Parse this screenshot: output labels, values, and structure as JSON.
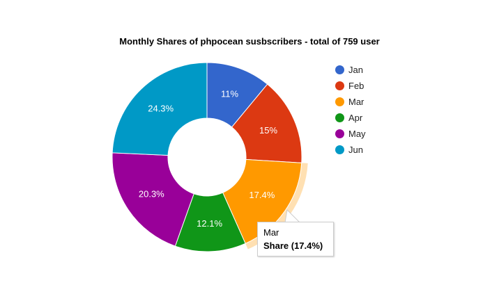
{
  "chart_data": {
    "type": "pie",
    "subtype": "donut",
    "title": "Monthly Shares of phpocean susbscribers - total of 759 user",
    "categories": [
      "Jan",
      "Feb",
      "Mar",
      "Apr",
      "May",
      "Jun"
    ],
    "values": [
      11,
      15,
      17.4,
      12.1,
      20.3,
      24.3
    ],
    "labels": [
      "11%",
      "15%",
      "17.4%",
      "12.1%",
      "20.3%",
      "24.3%"
    ],
    "colors": [
      "#3366cc",
      "#dc3912",
      "#ff9900",
      "#109618",
      "#990099",
      "#0099c6"
    ],
    "highlight": "Mar",
    "legend_position": "right"
  },
  "tooltip": {
    "category": "Mar",
    "value": "Share (17.4%)"
  }
}
